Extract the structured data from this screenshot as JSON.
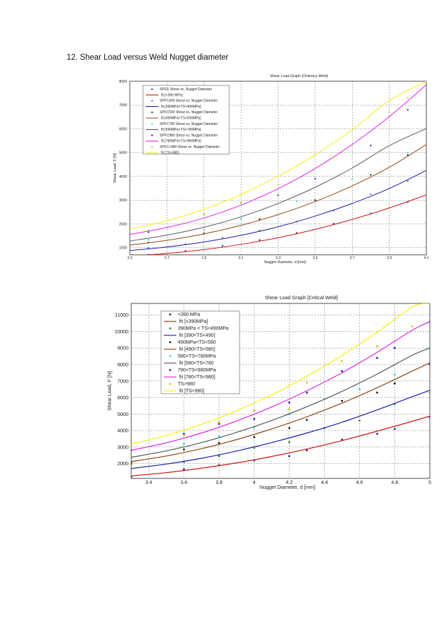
{
  "page": {
    "heading": "12. Shear Load versus Weld Nugget diameter"
  },
  "chart_data": [
    {
      "type": "line",
      "title": "Shear Load Graph (Ordinary Weld)",
      "xlabel": "Nugget Diameter, d [mm]",
      "ylabel": "Shear Load, F [N]",
      "xlim": [
        2.5,
        4.1
      ],
      "ylim": [
        700,
        8000
      ],
      "xticks": [
        2.5,
        2.7,
        2.9,
        3.1,
        3.3,
        3.5,
        3.7,
        3.9,
        4.1
      ],
      "xtick_labels": [
        "2.5",
        "2.7",
        "2.9",
        "3.1",
        "3.3",
        "3.5",
        "3.7",
        "3.9",
        "4.1"
      ],
      "yticks": [
        1000,
        2000,
        3000,
        4000,
        5000,
        6000,
        7000,
        8000
      ],
      "ytick_labels": [
        "1000",
        "2000",
        "3000",
        "4000",
        "5000",
        "6000",
        "7000",
        "8000"
      ],
      "grid": true,
      "legend_position": "top-left",
      "colors": {
        "lt390": "#cc1111",
        "c390_490": "#1a1aaa",
        "c490_580": "#8b4513",
        "c580_780": "#4a5a5a",
        "c780_980": "#dd22dd",
        "ge980": "#f2f20a"
      },
      "series": [
        {
          "name": "SPCE Shear vs. Nugget Diameter",
          "kind": "points",
          "color": "#1a1aaa",
          "x": [
            2.6,
            2.8,
            3.0,
            3.2,
            3.4,
            3.6,
            3.8,
            4.0
          ],
          "y": [
            710,
            860,
            1080,
            1320,
            1620,
            2010,
            2440,
            2920
          ]
        },
        {
          "name": "fit [<390 MPa]",
          "kind": "line",
          "color": "#cc1111",
          "x": [
            2.5,
            2.7,
            2.9,
            3.1,
            3.3,
            3.5,
            3.7,
            3.9,
            4.1
          ],
          "y": [
            650,
            760,
            920,
            1140,
            1420,
            1770,
            2190,
            2670,
            3220
          ]
        },
        {
          "name": "SPFC490 Shear vs. Nugget Diameter",
          "kind": "points",
          "color": "#2a8a2a",
          "x": [
            2.6,
            2.8,
            3.0,
            3.2,
            3.4,
            3.6,
            3.8,
            4.0
          ],
          "y": [
            990,
            1150,
            1420,
            1720,
            2100,
            2560,
            3250,
            3800
          ]
        },
        {
          "name": "fit [390MPa<TS<490MPa]",
          "kind": "line",
          "color": "#1a1aaa",
          "x": [
            2.5,
            2.7,
            2.9,
            3.1,
            3.3,
            3.5,
            3.7,
            3.9,
            4.1
          ],
          "y": [
            880,
            1030,
            1240,
            1520,
            1880,
            2330,
            2860,
            3490,
            4250
          ]
        },
        {
          "name": "SPFC590 Shear vs. Nugget Diameter",
          "kind": "points",
          "color": "#111111",
          "x": [
            2.6,
            2.9,
            3.2,
            3.5,
            3.8,
            4.0
          ],
          "y": [
            1220,
            1600,
            2200,
            3000,
            4060,
            4900
          ]
        },
        {
          "name": "fit [490MPa<TS<590MPa]",
          "kind": "line",
          "color": "#8b4513",
          "x": [
            2.5,
            2.7,
            2.9,
            3.1,
            3.3,
            3.5,
            3.7,
            3.9,
            4.1
          ],
          "y": [
            1110,
            1310,
            1580,
            1940,
            2390,
            2940,
            3600,
            4380,
            5340
          ]
        },
        {
          "name": "SPFC780 Shear vs. Nugget Diameter",
          "kind": "points",
          "color": "#33cccc",
          "x": [
            2.6,
            2.9,
            3.1,
            3.4,
            3.7,
            4.0
          ],
          "y": [
            1330,
            1750,
            2200,
            2950,
            3900,
            5000
          ]
        },
        {
          "name": "fit [590MPa<TS<780MPa]",
          "kind": "line",
          "color": "#4a5a5a",
          "x": [
            2.5,
            2.7,
            2.9,
            3.1,
            3.3,
            3.5,
            3.7,
            3.9,
            4.1
          ],
          "y": [
            1280,
            1530,
            1860,
            2300,
            2860,
            3540,
            4350,
            5290,
            6010
          ]
        },
        {
          "name": "SPFC980 Shear vs. Nugget Diameter",
          "kind": "points",
          "color": "#1a1aaa",
          "x": [
            2.6,
            2.9,
            3.1,
            3.3,
            3.5,
            3.8,
            4.0
          ],
          "y": [
            1650,
            2400,
            2900,
            3200,
            3900,
            5300,
            6800
          ]
        },
        {
          "name": "fit [780MPa<TS<980MPa]",
          "kind": "line",
          "color": "#dd22dd",
          "x": [
            2.5,
            2.7,
            2.9,
            3.1,
            3.3,
            3.5,
            3.7,
            3.9,
            4.1
          ],
          "y": [
            1560,
            1850,
            2250,
            2790,
            3480,
            4330,
            5340,
            6510,
            7850
          ]
        },
        {
          "name": "SPFC>980 Shear vs. Nugget Diameter",
          "kind": "points",
          "color": "#c8c800",
          "x": [
            2.6,
            2.9,
            3.1,
            3.3,
            3.6,
            3.9,
            4.0
          ],
          "y": [
            1750,
            2400,
            2900,
            3650,
            4800,
            6700,
            7300
          ]
        },
        {
          "name": "fit [TS>980]",
          "kind": "line",
          "color": "#f2f20a",
          "x": [
            2.5,
            2.7,
            2.9,
            3.1,
            3.3,
            3.5,
            3.7,
            3.9,
            4.1
          ],
          "y": [
            1790,
            2130,
            2620,
            3240,
            4000,
            4900,
            5960,
            7180,
            8000
          ]
        }
      ]
    },
    {
      "type": "line",
      "title": "Shear Load Graph [Critical Weld]",
      "xlabel": "Nugget Diameter, d [mm]",
      "ylabel": "Shear Load, F [N]",
      "xlim": [
        3.3,
        5.0
      ],
      "ylim": [
        1100,
        11700
      ],
      "xticks": [
        3.4,
        3.6,
        3.8,
        4.0,
        4.2,
        4.4,
        4.6,
        4.8,
        5.0
      ],
      "xtick_labels": [
        "3.4",
        "3.6",
        "3.8",
        "4",
        "4.2",
        "4.4",
        "4.6",
        "4.8",
        "5"
      ],
      "yticks": [
        2000,
        3000,
        4000,
        5000,
        6000,
        7000,
        8000,
        9000,
        10000,
        11000
      ],
      "ytick_labels": [
        "2000",
        "3000",
        "4000",
        "5000",
        "6000",
        "7000",
        "8000",
        "9000",
        "10000",
        "11000"
      ],
      "grid": true,
      "legend_position": "top-left",
      "series": [
        {
          "name": "<390 MPa",
          "kind": "points",
          "color": "#1a1aaa",
          "x": [
            3.3,
            3.6,
            3.8,
            4.0,
            4.2,
            4.3,
            4.5,
            4.7,
            4.8,
            5.0
          ],
          "y": [
            1200,
            1650,
            1900,
            2200,
            2450,
            2800,
            3450,
            3800,
            4100,
            4800
          ]
        },
        {
          "name": "fit [<390MPa]",
          "kind": "line",
          "color": "#cc1111",
          "x": [
            3.3,
            3.5,
            3.7,
            3.9,
            4.1,
            4.3,
            4.5,
            4.7,
            4.9,
            5.0
          ],
          "y": [
            1250,
            1450,
            1720,
            2040,
            2430,
            2880,
            3390,
            3960,
            4560,
            4870
          ]
        },
        {
          "name": "390MPa < TS<490MPa",
          "kind": "points",
          "color": "#2a8a2a",
          "x": [
            3.3,
            3.6,
            3.8,
            4.0,
            4.2,
            4.4,
            4.6,
            4.8,
            5.0
          ],
          "y": [
            1950,
            2100,
            2450,
            2950,
            3300,
            4150,
            4600,
            5600,
            6300
          ]
        },
        {
          "name": "fit [390<TS<490]",
          "kind": "line",
          "color": "#1a1aaa",
          "x": [
            3.3,
            3.5,
            3.7,
            3.9,
            4.1,
            4.3,
            4.5,
            4.7,
            4.9,
            5.0
          ],
          "y": [
            1700,
            1970,
            2320,
            2760,
            3270,
            3850,
            4500,
            5250,
            6050,
            6440
          ]
        },
        {
          "name": "490MPa<TS<580",
          "kind": "points",
          "color": "#111111",
          "x": [
            3.3,
            3.6,
            3.8,
            4.0,
            4.2,
            4.3,
            4.5,
            4.7,
            4.8,
            5.0
          ],
          "y": [
            2050,
            2850,
            3250,
            3600,
            4150,
            4650,
            5800,
            6300,
            6850,
            8000
          ]
        },
        {
          "name": "fit [490<TS<580]",
          "kind": "line",
          "color": "#8b4513",
          "x": [
            3.3,
            3.5,
            3.7,
            3.9,
            4.1,
            4.3,
            4.5,
            4.7,
            4.9,
            5.0
          ],
          "y": [
            2120,
            2460,
            2900,
            3450,
            4100,
            4830,
            5660,
            6590,
            7600,
            8100
          ]
        },
        {
          "name": "580<TS<780MPa",
          "kind": "points",
          "color": "#33cccc",
          "x": [
            3.3,
            3.6,
            3.8,
            4.0,
            4.2,
            4.4,
            4.6,
            4.8,
            5.0
          ],
          "y": [
            2300,
            3200,
            3650,
            4200,
            5000,
            5900,
            6500,
            7400,
            9000
          ]
        },
        {
          "name": "fit [580<TS<780",
          "kind": "line",
          "color": "#4a5a5a",
          "x": [
            3.3,
            3.5,
            3.7,
            3.9,
            4.1,
            4.3,
            4.5,
            4.7,
            4.9,
            5.0
          ],
          "y": [
            2380,
            2770,
            3270,
            3890,
            4610,
            5440,
            6370,
            7420,
            8560,
            9000
          ]
        },
        {
          "name": "780<TS<980MPa",
          "kind": "points",
          "color": "#1a1aaa",
          "x": [
            3.3,
            3.6,
            3.8,
            4.0,
            4.2,
            4.3,
            4.5,
            4.7,
            4.8,
            5.0
          ],
          "y": [
            2800,
            3800,
            4400,
            4700,
            5700,
            6300,
            7600,
            8400,
            9000,
            10600
          ]
        },
        {
          "name": "fit [780<TS<980]",
          "kind": "line",
          "color": "#dd22dd",
          "x": [
            3.3,
            3.5,
            3.7,
            3.9,
            4.1,
            4.3,
            4.5,
            4.7,
            4.9,
            5.0
          ],
          "y": [
            2800,
            3260,
            3850,
            4580,
            5430,
            6410,
            7500,
            8740,
            10080,
            10600
          ]
        },
        {
          "name": "TS>980",
          "kind": "points",
          "color": "#c8c800",
          "x": [
            3.3,
            3.6,
            3.8,
            4.0,
            4.2,
            4.3,
            4.5,
            4.7,
            4.9
          ],
          "y": [
            3000,
            3700,
            4500,
            5200,
            5300,
            6900,
            8200,
            9100,
            10300
          ]
        },
        {
          "name": "fit [TS>980]",
          "kind": "line",
          "color": "#f2f20a",
          "x": [
            3.3,
            3.5,
            3.7,
            3.9,
            4.1,
            4.3,
            4.5,
            4.7,
            4.9,
            5.0
          ],
          "y": [
            3180,
            3700,
            4380,
            5200,
            6170,
            7290,
            8540,
            9950,
            11480,
            11700
          ]
        }
      ]
    }
  ]
}
